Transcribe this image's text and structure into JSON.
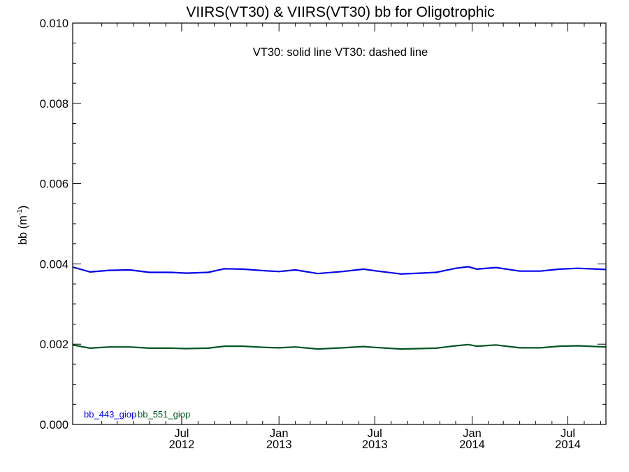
{
  "chart_data": {
    "type": "line",
    "title": "VIIRS(VT30) & VIIRS(VT30)  bb for Oligotrophic",
    "subtitle": "VT30: solid line   VT30: dashed line",
    "ylabel": "bb (m",
    "ylabel_superscript": "-1",
    "ylabel_suffix": ")",
    "xlim": [
      "2011-12-08",
      "2014-09-11"
    ],
    "ylim": [
      0,
      0.01
    ],
    "y_ticks": [
      "0.000",
      "0.002",
      "0.004",
      "0.006",
      "0.008",
      "0.010"
    ],
    "x_ticks": [
      {
        "month": "Jul",
        "year": "2012",
        "date": "2012-07-01"
      },
      {
        "month": "Jan",
        "year": "2013",
        "date": "2013-01-01"
      },
      {
        "month": "Jul",
        "year": "2013",
        "date": "2013-07-01"
      },
      {
        "month": "Jan",
        "year": "2014",
        "date": "2014-01-01"
      },
      {
        "month": "Jul",
        "year": "2014",
        "date": "2014-07-01"
      }
    ],
    "legend_placement": "bottom-left",
    "series": [
      {
        "name": "bb_443_giop",
        "color": "#0000ee",
        "dates": [
          "2011-12-08",
          "2012-01-10",
          "2012-02-15",
          "2012-03-25",
          "2012-05-01",
          "2012-06-10",
          "2012-07-10",
          "2012-08-20",
          "2012-09-20",
          "2012-10-25",
          "2012-12-05",
          "2013-01-01",
          "2013-02-01",
          "2013-03-15",
          "2013-05-01",
          "2013-06-10",
          "2013-07-01",
          "2013-08-20",
          "2013-09-25",
          "2013-10-25",
          "2013-12-01",
          "2013-12-25",
          "2014-01-10",
          "2014-02-15",
          "2014-04-01",
          "2014-05-10",
          "2014-06-15",
          "2014-07-20",
          "2014-09-11"
        ],
        "values": [
          0.00392,
          0.0038,
          0.00384,
          0.00385,
          0.00379,
          0.00379,
          0.00377,
          0.00379,
          0.00388,
          0.00387,
          0.00383,
          0.00381,
          0.00385,
          0.00376,
          0.00381,
          0.00387,
          0.00383,
          0.00375,
          0.00377,
          0.00379,
          0.00389,
          0.00393,
          0.00387,
          0.00391,
          0.00382,
          0.00382,
          0.00387,
          0.00389,
          0.00386
        ]
      },
      {
        "name": "bb_551_giop",
        "color": "#005520",
        "dates": [
          "2011-12-08",
          "2012-01-10",
          "2012-02-15",
          "2012-03-25",
          "2012-05-01",
          "2012-06-10",
          "2012-07-10",
          "2012-08-20",
          "2012-09-20",
          "2012-10-25",
          "2012-12-05",
          "2013-01-01",
          "2013-02-01",
          "2013-03-15",
          "2013-05-01",
          "2013-06-10",
          "2013-07-01",
          "2013-08-20",
          "2013-09-25",
          "2013-10-25",
          "2013-12-01",
          "2013-12-25",
          "2014-01-10",
          "2014-02-15",
          "2014-04-01",
          "2014-05-10",
          "2014-06-15",
          "2014-07-20",
          "2014-09-11"
        ],
        "values": [
          0.00198,
          0.0019,
          0.00193,
          0.00193,
          0.0019,
          0.0019,
          0.00189,
          0.0019,
          0.00195,
          0.00195,
          0.00192,
          0.00191,
          0.00193,
          0.00188,
          0.00191,
          0.00194,
          0.00192,
          0.00188,
          0.00189,
          0.0019,
          0.00196,
          0.00199,
          0.00195,
          0.00198,
          0.00191,
          0.00191,
          0.00195,
          0.00196,
          0.00193
        ]
      }
    ]
  }
}
